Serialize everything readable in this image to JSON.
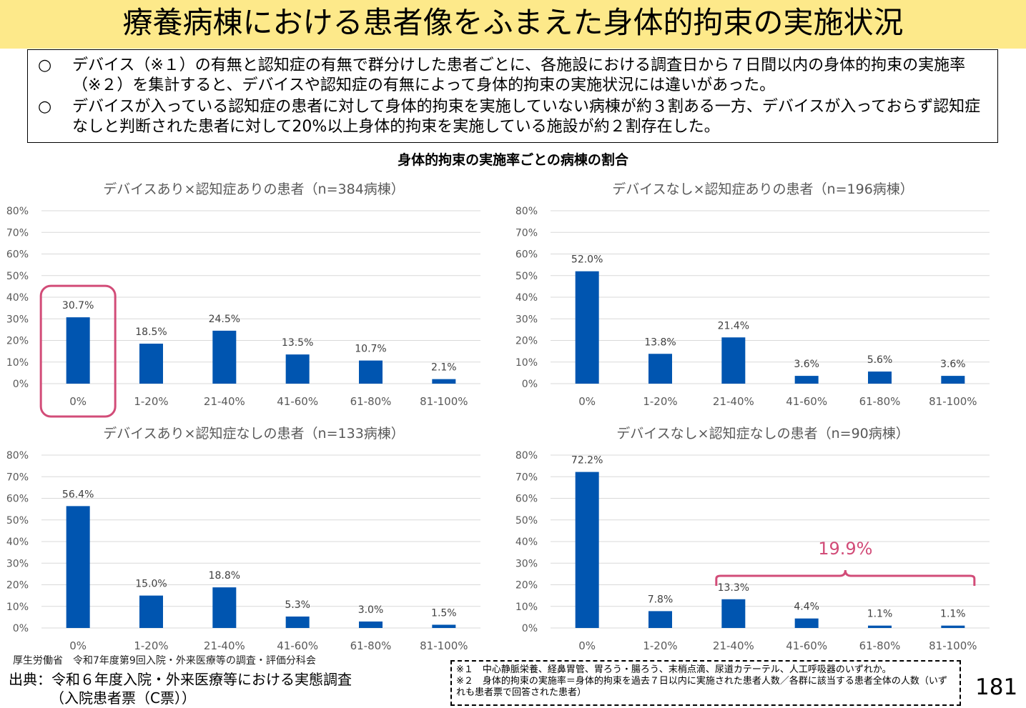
{
  "title": "療養病棟における患者像をふまえた身体的拘束の実施状況",
  "summary": [
    {
      "bullet": "○",
      "text": "デバイス（※１）の有無と認知症の有無で群分けした患者ごとに、各施設における調査日から７日間以内の身体的拘束の実施率（※２）を集計すると、デバイスや認知症の有無によって身体的拘束の実施状況には違いがあった。"
    },
    {
      "bullet": "○",
      "text": "デバイスが入っている認知症の患者に対して身体的拘束を実施していない病棟が約３割ある一方、デバイスが入っておらず認知症なしと判断された患者に対して20%以上身体的拘束を実施している施設が約２割存在した。"
    }
  ],
  "section_title": "身体的拘束の実施率ごとの病棟の割合",
  "colors": {
    "bar": "#0055b0",
    "highlight": "#d24c78",
    "title_bg": "#fde98a",
    "grid": "#d9d9d9"
  },
  "chart_data": [
    {
      "type": "bar",
      "title": "デバイスあり×認知症ありの患者（n=384病棟）",
      "categories": [
        "0%",
        "1-20%",
        "21-40%",
        "41-60%",
        "61-80%",
        "81-100%"
      ],
      "values": [
        30.7,
        18.5,
        24.5,
        13.5,
        10.7,
        2.1
      ],
      "value_labels": [
        "30.7%",
        "18.5%",
        "24.5%",
        "13.5%",
        "10.7%",
        "2.1%"
      ],
      "yticks": [
        "0%",
        "10%",
        "20%",
        "30%",
        "40%",
        "50%",
        "60%",
        "70%",
        "80%"
      ],
      "ylim": [
        0,
        80
      ],
      "grid": true,
      "highlight_box_category": "0%"
    },
    {
      "type": "bar",
      "title": "デバイスなし×認知症ありの患者（n=196病棟）",
      "categories": [
        "0%",
        "1-20%",
        "21-40%",
        "41-60%",
        "61-80%",
        "81-100%"
      ],
      "values": [
        52.0,
        13.8,
        21.4,
        3.6,
        5.6,
        3.6
      ],
      "value_labels": [
        "52.0%",
        "13.8%",
        "21.4%",
        "3.6%",
        "5.6%",
        "3.6%"
      ],
      "yticks": [
        "0%",
        "10%",
        "20%",
        "30%",
        "40%",
        "50%",
        "60%",
        "70%",
        "80%"
      ],
      "ylim": [
        0,
        80
      ],
      "grid": true
    },
    {
      "type": "bar",
      "title": "デバイスあり×認知症なしの患者（n=133病棟）",
      "categories": [
        "0%",
        "1-20%",
        "21-40%",
        "41-60%",
        "61-80%",
        "81-100%"
      ],
      "values": [
        56.4,
        15.0,
        18.8,
        5.3,
        3.0,
        1.5
      ],
      "value_labels": [
        "56.4%",
        "15.0%",
        "18.8%",
        "5.3%",
        "3.0%",
        "1.5%"
      ],
      "yticks": [
        "0%",
        "10%",
        "20%",
        "30%",
        "40%",
        "50%",
        "60%",
        "70%",
        "80%"
      ],
      "ylim": [
        0,
        80
      ],
      "grid": true
    },
    {
      "type": "bar",
      "title": "デバイスなし×認知症なしの患者（n=90病棟）",
      "categories": [
        "0%",
        "1-20%",
        "21-40%",
        "41-60%",
        "61-80%",
        "81-100%"
      ],
      "values": [
        72.2,
        7.8,
        13.3,
        4.4,
        1.1,
        1.1
      ],
      "value_labels": [
        "72.2%",
        "7.8%",
        "13.3%",
        "4.4%",
        "1.1%",
        "1.1%"
      ],
      "yticks": [
        "0%",
        "10%",
        "20%",
        "30%",
        "40%",
        "50%",
        "60%",
        "70%",
        "80%"
      ],
      "ylim": [
        0,
        80
      ],
      "grid": true,
      "bracket": {
        "from_category": "21-40%",
        "to_category": "81-100%",
        "label": "19.9%"
      }
    }
  ],
  "footer": {
    "org": "厚生労働省　令和7年度第9回入院・外来医療等の調査・評価分科会",
    "source_line1": "出典：令和６年度入院・外来医療等における実態調査",
    "source_line2": "（入院患者票（C票））",
    "notes": [
      "※１　中心静脈栄養、経鼻胃管、胃ろう・腸ろう、末梢点滴、尿道カテーテル、人工呼吸器のいずれか。",
      "※２　身体的拘束の実施率＝身体的拘束を過去７日以内に実施された患者人数／各群に該当する患者全体の人数（いずれも患者票で回答された患者）"
    ],
    "page_number": "181"
  }
}
